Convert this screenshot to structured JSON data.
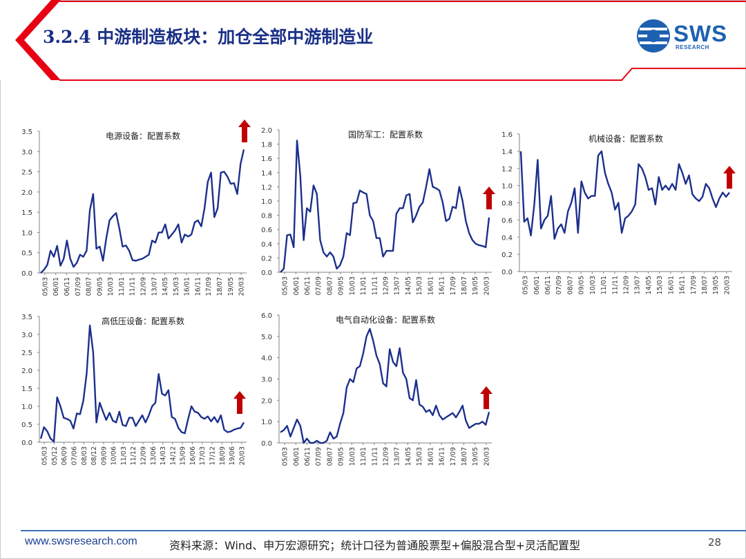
{
  "header": {
    "title": "3.2.4 中游制造板块：加仓全部中游制造业",
    "logo_text": "SWS",
    "logo_sub": "RESEARCH"
  },
  "footer": {
    "url": "www.swsresearch.com",
    "source": "资料来源：Wind、申万宏源研究；统计口径为普通股票型+偏股混合型+灵活配置型",
    "page_number": "28"
  },
  "colors": {
    "line": "#1b2f8c",
    "arrow": "#c00000",
    "accent": "#c00000",
    "brand": "#1d61b0"
  },
  "chart_data": [
    {
      "type": "line",
      "title": "电源设备：配置系数",
      "x_tick_labels": [
        "05/03",
        "06/01",
        "06/11",
        "07/09",
        "08/07",
        "09/05",
        "10/03",
        "11/01",
        "11/11",
        "12/09",
        "13/07",
        "14/05",
        "15/03",
        "16/01",
        "16/11",
        "17/09",
        "18/07",
        "19/05",
        "20/03"
      ],
      "yticks": [
        "0.0",
        "0.5",
        "1.0",
        "1.5",
        "2.0",
        "2.5",
        "3.0",
        "3.5"
      ],
      "ylim": [
        0,
        3.5
      ],
      "arrow": "up",
      "values": [
        0.0,
        0.08,
        0.2,
        0.55,
        0.4,
        0.67,
        0.18,
        0.35,
        0.8,
        0.35,
        0.15,
        0.25,
        0.45,
        0.4,
        0.55,
        1.55,
        1.95,
        0.6,
        0.65,
        0.3,
        0.85,
        1.3,
        1.4,
        1.48,
        1.1,
        0.65,
        0.68,
        0.55,
        0.32,
        0.3,
        0.33,
        0.35,
        0.4,
        0.45,
        0.8,
        0.75,
        1.0,
        1.0,
        1.2,
        0.85,
        0.95,
        1.05,
        1.2,
        0.75,
        0.95,
        0.9,
        0.95,
        1.25,
        1.3,
        1.15,
        1.6,
        2.25,
        2.48,
        1.38,
        1.6,
        2.48,
        2.5,
        2.38,
        2.2,
        2.22,
        1.95,
        2.7,
        3.05
      ]
    },
    {
      "type": "line",
      "title": "国防军工：配置系数",
      "x_tick_labels": [
        "05/03",
        "06/01",
        "06/11",
        "07/09",
        "08/07",
        "09/05",
        "10/03",
        "11/01",
        "11/11",
        "12/09",
        "13/07",
        "14/05",
        "15/03",
        "16/01",
        "16/11",
        "17/09",
        "18/07",
        "19/05",
        "20/03"
      ],
      "yticks": [
        "0.0",
        "0.2",
        "0.4",
        "0.6",
        "0.8",
        "1.0",
        "1.2",
        "1.4",
        "1.6",
        "1.8",
        "2.0"
      ],
      "ylim": [
        0,
        2.0
      ],
      "arrow": "up",
      "values": [
        0.0,
        0.05,
        0.52,
        0.53,
        0.35,
        1.85,
        1.35,
        0.45,
        0.9,
        0.85,
        1.22,
        1.1,
        0.45,
        0.28,
        0.22,
        0.28,
        0.22,
        0.05,
        0.1,
        0.22,
        0.55,
        0.52,
        0.97,
        0.98,
        1.15,
        1.12,
        1.1,
        0.8,
        0.72,
        0.48,
        0.48,
        0.22,
        0.3,
        0.3,
        0.3,
        0.82,
        0.9,
        0.9,
        1.08,
        1.1,
        0.7,
        0.8,
        0.92,
        0.98,
        1.2,
        1.45,
        1.2,
        1.18,
        1.15,
        0.98,
        0.72,
        0.75,
        0.92,
        0.9,
        1.2,
        1.0,
        0.72,
        0.55,
        0.45,
        0.4,
        0.38,
        0.37,
        0.35,
        0.77
      ]
    },
    {
      "type": "line",
      "title": "机械设备：配置系数",
      "x_tick_labels": [
        "05/03",
        "06/01",
        "06/11",
        "07/09",
        "08/07",
        "09/05",
        "10/03",
        "11/01",
        "11/11",
        "12/09",
        "13/07",
        "14/05",
        "15/03",
        "16/01",
        "16/11",
        "17/09",
        "18/07",
        "19/05",
        "20/03"
      ],
      "yticks": [
        "0.0",
        "0.2",
        "0.4",
        "0.6",
        "0.8",
        "1.0",
        "1.2",
        "1.4",
        "1.6"
      ],
      "ylim": [
        0,
        1.6
      ],
      "arrow": "up",
      "values": [
        1.4,
        0.58,
        0.62,
        0.42,
        0.78,
        1.3,
        0.5,
        0.6,
        0.65,
        0.88,
        0.38,
        0.5,
        0.55,
        0.45,
        0.7,
        0.8,
        0.97,
        0.45,
        1.05,
        0.92,
        0.85,
        0.88,
        0.88,
        1.35,
        1.4,
        1.15,
        1.02,
        0.92,
        0.72,
        0.8,
        0.45,
        0.62,
        0.65,
        0.7,
        0.78,
        1.25,
        1.2,
        1.1,
        0.95,
        0.97,
        0.78,
        1.1,
        0.95,
        1.0,
        0.95,
        1.02,
        0.95,
        1.25,
        1.15,
        1.02,
        1.12,
        0.9,
        0.85,
        0.82,
        0.87,
        1.02,
        0.97,
        0.85,
        0.75,
        0.85,
        0.92,
        0.87,
        0.92
      ]
    },
    {
      "type": "line",
      "title": "高低压设备：配置系数",
      "x_tick_labels": [
        "05/03",
        "05/12",
        "06/09",
        "07/06",
        "08/03",
        "08/12",
        "09/09",
        "10/06",
        "11/03",
        "11/12",
        "12/09",
        "13/06",
        "14/03",
        "14/12",
        "15/09",
        "16/06",
        "17/03",
        "17/12",
        "18/09",
        "19/06",
        "20/03"
      ],
      "yticks": [
        "0.0",
        "0.5",
        "1.0",
        "1.5",
        "2.0",
        "2.5",
        "3.0",
        "3.5"
      ],
      "ylim": [
        0,
        3.5
      ],
      "arrow": "up",
      "values": [
        0.1,
        0.42,
        0.3,
        0.1,
        0.02,
        1.25,
        1.0,
        0.68,
        0.65,
        0.6,
        0.38,
        0.8,
        0.78,
        1.15,
        1.9,
        3.25,
        2.5,
        0.55,
        1.1,
        0.85,
        0.62,
        0.82,
        0.6,
        0.55,
        0.85,
        0.48,
        0.45,
        0.68,
        0.68,
        0.45,
        0.6,
        0.75,
        0.55,
        0.75,
        1.0,
        1.1,
        1.9,
        1.35,
        1.3,
        1.45,
        0.7,
        0.65,
        0.4,
        0.28,
        0.25,
        0.65,
        1.0,
        0.85,
        0.82,
        0.7,
        0.65,
        0.72,
        0.58,
        0.7,
        0.55,
        0.75,
        0.35,
        0.28,
        0.3,
        0.35,
        0.38,
        0.4,
        0.55
      ]
    },
    {
      "type": "line",
      "title": "电气自动化设备：配置系数",
      "x_tick_labels": [
        "05/03",
        "06/01",
        "06/11",
        "07/09",
        "08/07",
        "09/05",
        "10/03",
        "11/01",
        "11/11",
        "12/09",
        "13/07",
        "14/05",
        "15/03",
        "16/01",
        "16/11",
        "17/09",
        "18/07",
        "19/05",
        "20/03"
      ],
      "yticks": [
        "0.0",
        "1.0",
        "2.0",
        "3.0",
        "4.0",
        "5.0",
        "6.0"
      ],
      "ylim": [
        0,
        6.0
      ],
      "arrow": "up",
      "values": [
        0.5,
        0.6,
        0.8,
        0.3,
        0.7,
        1.1,
        0.8,
        0.0,
        0.2,
        0.0,
        0.0,
        0.1,
        0.0,
        0.0,
        0.1,
        0.5,
        0.2,
        0.3,
        0.9,
        1.4,
        2.6,
        3.0,
        2.85,
        3.5,
        3.6,
        4.2,
        5.0,
        5.35,
        4.8,
        4.1,
        3.7,
        2.8,
        2.65,
        4.4,
        3.8,
        3.6,
        4.45,
        3.3,
        3.0,
        2.1,
        2.0,
        2.95,
        1.8,
        1.7,
        1.45,
        1.55,
        1.3,
        1.75,
        1.3,
        1.1,
        1.2,
        1.3,
        1.4,
        1.2,
        1.45,
        1.75,
        1.05,
        0.7,
        0.8,
        0.9,
        0.9,
        1.0,
        0.85,
        1.45
      ]
    }
  ]
}
